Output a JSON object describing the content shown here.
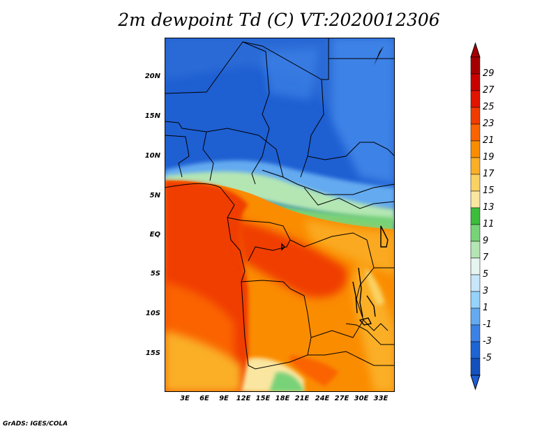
{
  "title": "2m dewpoint Td (C) VT:2020012306",
  "footer": "GrADS: IGES/COLA",
  "lat_ticks": [
    "20N",
    "15N",
    "10N",
    "5N",
    "EQ",
    "5S",
    "10S",
    "15S"
  ],
  "lon_ticks": [
    "3E",
    "6E",
    "9E",
    "12E",
    "15E",
    "18E",
    "21E",
    "24E",
    "27E",
    "30E",
    "33E"
  ],
  "colorbar": {
    "labels": [
      "29",
      "27",
      "25",
      "23",
      "21",
      "19",
      "17",
      "15",
      "13",
      "11",
      "9",
      "7",
      "5",
      "3",
      "1",
      "-1",
      "-3",
      "-5"
    ],
    "colors": [
      "#a50000",
      "#c80000",
      "#e11400",
      "#f03c00",
      "#fa6400",
      "#fa8c00",
      "#faaf28",
      "#fad264",
      "#fae6a0",
      "#3cbe3c",
      "#78d278",
      "#b4e6b4",
      "#e6f5f0",
      "#c8e6fa",
      "#96d2fa",
      "#64aaf0",
      "#3c82e6",
      "#1e64d2",
      "#1450be"
    ],
    "top_color": "#a50000",
    "bottom_color": "#1e5fd2"
  }
}
